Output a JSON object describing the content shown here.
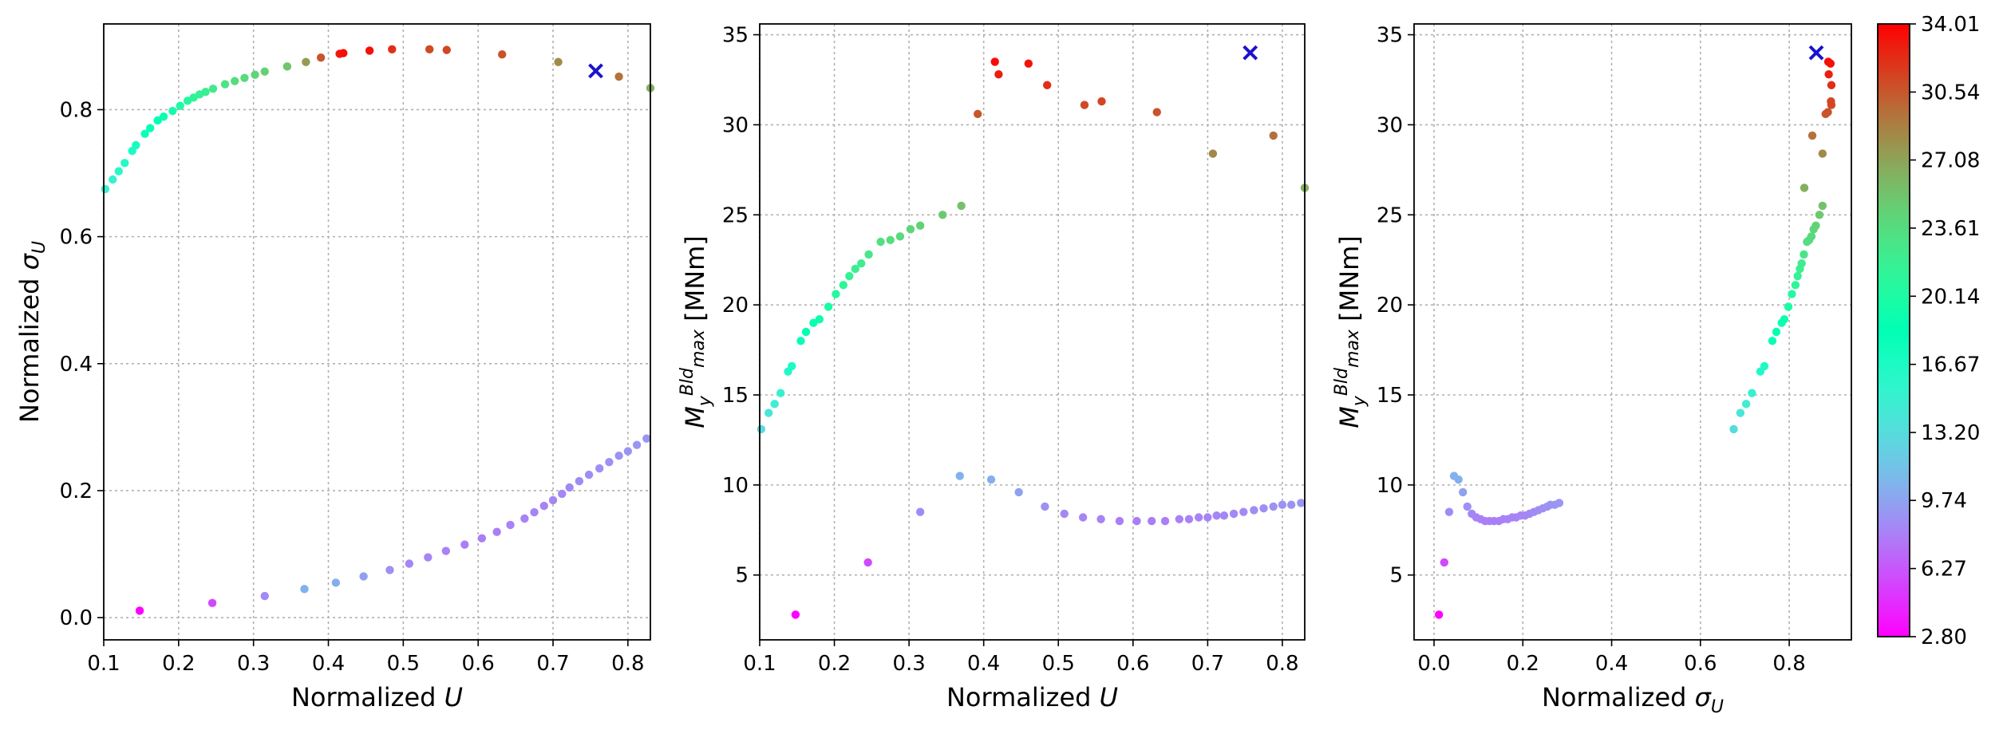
{
  "chart_data": [
    {
      "type": "scatter",
      "xlabel": {
        "main": "Normalized ",
        "sym": "U"
      },
      "ylabel": {
        "main": "Normalized ",
        "sym": "σ",
        "sub": "U"
      },
      "xlim": [
        0.1,
        0.83
      ],
      "ylim": [
        -0.035,
        0.935
      ],
      "xticks": [
        0.1,
        0.2,
        0.3,
        0.4,
        0.5,
        0.6,
        0.7,
        0.8
      ],
      "xtick_labels": [
        "0.1",
        "0.2",
        "0.3",
        "0.4",
        "0.5",
        "0.6",
        "0.7",
        "0.8"
      ],
      "yticks": [
        0.0,
        0.2,
        0.4,
        0.6,
        0.8
      ],
      "ytick_labels": [
        "0.0",
        "0.2",
        "0.4",
        "0.6",
        "0.8"
      ],
      "grid": true,
      "points": [
        {
          "x": 0.102,
          "y": 0.675,
          "c": 15.0
        },
        {
          "x": 0.112,
          "y": 0.69,
          "c": 15.3
        },
        {
          "x": 0.12,
          "y": 0.703,
          "c": 15.8
        },
        {
          "x": 0.128,
          "y": 0.716,
          "c": 16.2
        },
        {
          "x": 0.138,
          "y": 0.735,
          "c": 16.6
        },
        {
          "x": 0.143,
          "y": 0.744,
          "c": 17.0
        },
        {
          "x": 0.155,
          "y": 0.762,
          "c": 17.6
        },
        {
          "x": 0.162,
          "y": 0.771,
          "c": 18.0
        },
        {
          "x": 0.172,
          "y": 0.783,
          "c": 18.6
        },
        {
          "x": 0.18,
          "y": 0.789,
          "c": 18.9
        },
        {
          "x": 0.192,
          "y": 0.798,
          "c": 19.6
        },
        {
          "x": 0.202,
          "y": 0.806,
          "c": 20.0
        },
        {
          "x": 0.212,
          "y": 0.814,
          "c": 20.7
        },
        {
          "x": 0.22,
          "y": 0.819,
          "c": 21.2
        },
        {
          "x": 0.228,
          "y": 0.824,
          "c": 21.6
        },
        {
          "x": 0.236,
          "y": 0.828,
          "c": 22.0
        },
        {
          "x": 0.246,
          "y": 0.833,
          "c": 22.5
        },
        {
          "x": 0.262,
          "y": 0.84,
          "c": 23.0
        },
        {
          "x": 0.275,
          "y": 0.845,
          "c": 23.6
        },
        {
          "x": 0.288,
          "y": 0.85,
          "c": 23.8
        },
        {
          "x": 0.302,
          "y": 0.855,
          "c": 24.2
        },
        {
          "x": 0.315,
          "y": 0.86,
          "c": 24.5
        },
        {
          "x": 0.345,
          "y": 0.868,
          "c": 25.2
        },
        {
          "x": 0.37,
          "y": 0.875,
          "c": 27.5
        },
        {
          "x": 0.39,
          "y": 0.882,
          "c": 30.6
        },
        {
          "x": 0.415,
          "y": 0.888,
          "c": 33.0
        },
        {
          "x": 0.42,
          "y": 0.889,
          "c": 33.5
        },
        {
          "x": 0.455,
          "y": 0.893,
          "c": 33.4
        },
        {
          "x": 0.485,
          "y": 0.895,
          "c": 32.2
        },
        {
          "x": 0.535,
          "y": 0.895,
          "c": 31.1
        },
        {
          "x": 0.558,
          "y": 0.894,
          "c": 31.3
        },
        {
          "x": 0.632,
          "y": 0.887,
          "c": 30.7
        },
        {
          "x": 0.707,
          "y": 0.875,
          "c": 28.3
        },
        {
          "x": 0.788,
          "y": 0.852,
          "c": 29.4
        },
        {
          "x": 0.83,
          "y": 0.834,
          "c": 26.5
        },
        {
          "x": 0.148,
          "y": 0.011,
          "c": 2.8
        },
        {
          "x": 0.245,
          "y": 0.023,
          "c": 5.7
        },
        {
          "x": 0.315,
          "y": 0.034,
          "c": 8.5
        },
        {
          "x": 0.368,
          "y": 0.045,
          "c": 10.5
        },
        {
          "x": 0.41,
          "y": 0.055,
          "c": 10.3
        },
        {
          "x": 0.447,
          "y": 0.065,
          "c": 9.6
        },
        {
          "x": 0.482,
          "y": 0.075,
          "c": 8.8
        },
        {
          "x": 0.508,
          "y": 0.085,
          "c": 8.4
        },
        {
          "x": 0.533,
          "y": 0.095,
          "c": 8.2
        },
        {
          "x": 0.557,
          "y": 0.105,
          "c": 8.1
        },
        {
          "x": 0.582,
          "y": 0.115,
          "c": 8.0
        },
        {
          "x": 0.605,
          "y": 0.125,
          "c": 8.0
        },
        {
          "x": 0.625,
          "y": 0.135,
          "c": 8.0
        },
        {
          "x": 0.643,
          "y": 0.146,
          "c": 8.1
        },
        {
          "x": 0.662,
          "y": 0.156,
          "c": 8.1
        },
        {
          "x": 0.675,
          "y": 0.166,
          "c": 8.2
        },
        {
          "x": 0.688,
          "y": 0.176,
          "c": 8.2
        },
        {
          "x": 0.7,
          "y": 0.185,
          "c": 8.3
        },
        {
          "x": 0.712,
          "y": 0.195,
          "c": 8.3
        },
        {
          "x": 0.722,
          "y": 0.205,
          "c": 8.4
        },
        {
          "x": 0.735,
          "y": 0.215,
          "c": 8.5
        },
        {
          "x": 0.748,
          "y": 0.225,
          "c": 8.6
        },
        {
          "x": 0.762,
          "y": 0.235,
          "c": 8.7
        },
        {
          "x": 0.775,
          "y": 0.245,
          "c": 8.8
        },
        {
          "x": 0.788,
          "y": 0.255,
          "c": 8.9
        },
        {
          "x": 0.8,
          "y": 0.262,
          "c": 8.9
        },
        {
          "x": 0.812,
          "y": 0.272,
          "c": 9.0
        },
        {
          "x": 0.825,
          "y": 0.282,
          "c": 9.0
        }
      ],
      "marker": {
        "x": 0.757,
        "y": 0.861
      }
    },
    {
      "type": "scatter",
      "xlabel": {
        "main": "Normalized ",
        "sym": "U"
      },
      "ylabel": {
        "sym": "M",
        "sub": "y",
        "sup": "Bld",
        "sub2": "max",
        "unit": " [MNm]"
      },
      "xlim": [
        0.1,
        0.83
      ],
      "ylim": [
        1.4,
        35.6
      ],
      "xticks": [
        0.1,
        0.2,
        0.3,
        0.4,
        0.5,
        0.6,
        0.7,
        0.8
      ],
      "xtick_labels": [
        "0.1",
        "0.2",
        "0.3",
        "0.4",
        "0.5",
        "0.6",
        "0.7",
        "0.8"
      ],
      "yticks": [
        5,
        10,
        15,
        20,
        25,
        30,
        35
      ],
      "ytick_labels": [
        "5",
        "10",
        "15",
        "20",
        "25",
        "30",
        "35"
      ],
      "grid": true,
      "points": [
        {
          "x": 0.102,
          "y": 13.1,
          "c": 13.1
        },
        {
          "x": 0.112,
          "y": 14.0,
          "c": 14.0
        },
        {
          "x": 0.12,
          "y": 14.5,
          "c": 14.5
        },
        {
          "x": 0.128,
          "y": 15.1,
          "c": 15.1
        },
        {
          "x": 0.138,
          "y": 16.3,
          "c": 16.3
        },
        {
          "x": 0.143,
          "y": 16.6,
          "c": 16.6
        },
        {
          "x": 0.155,
          "y": 18.0,
          "c": 18.0
        },
        {
          "x": 0.162,
          "y": 18.5,
          "c": 18.5
        },
        {
          "x": 0.172,
          "y": 19.0,
          "c": 19.0
        },
        {
          "x": 0.18,
          "y": 19.2,
          "c": 19.2
        },
        {
          "x": 0.192,
          "y": 19.9,
          "c": 19.9
        },
        {
          "x": 0.202,
          "y": 20.6,
          "c": 20.6
        },
        {
          "x": 0.212,
          "y": 21.1,
          "c": 21.1
        },
        {
          "x": 0.22,
          "y": 21.6,
          "c": 21.6
        },
        {
          "x": 0.228,
          "y": 22.0,
          "c": 22.0
        },
        {
          "x": 0.236,
          "y": 22.3,
          "c": 22.3
        },
        {
          "x": 0.246,
          "y": 22.8,
          "c": 22.8
        },
        {
          "x": 0.262,
          "y": 23.5,
          "c": 23.5
        },
        {
          "x": 0.275,
          "y": 23.6,
          "c": 23.6
        },
        {
          "x": 0.288,
          "y": 23.8,
          "c": 23.8
        },
        {
          "x": 0.302,
          "y": 24.2,
          "c": 24.2
        },
        {
          "x": 0.315,
          "y": 24.4,
          "c": 24.4
        },
        {
          "x": 0.345,
          "y": 25.0,
          "c": 25.0
        },
        {
          "x": 0.37,
          "y": 25.5,
          "c": 25.5
        },
        {
          "x": 0.392,
          "y": 30.6,
          "c": 30.6
        },
        {
          "x": 0.415,
          "y": 33.5,
          "c": 33.5
        },
        {
          "x": 0.42,
          "y": 32.8,
          "c": 32.8
        },
        {
          "x": 0.46,
          "y": 33.4,
          "c": 33.4
        },
        {
          "x": 0.485,
          "y": 32.2,
          "c": 32.2
        },
        {
          "x": 0.535,
          "y": 31.1,
          "c": 31.1
        },
        {
          "x": 0.558,
          "y": 31.3,
          "c": 31.3
        },
        {
          "x": 0.632,
          "y": 30.7,
          "c": 30.7
        },
        {
          "x": 0.707,
          "y": 28.4,
          "c": 28.4
        },
        {
          "x": 0.788,
          "y": 29.4,
          "c": 29.4
        },
        {
          "x": 0.83,
          "y": 26.5,
          "c": 26.5
        },
        {
          "x": 0.148,
          "y": 2.8,
          "c": 2.8
        },
        {
          "x": 0.245,
          "y": 5.7,
          "c": 5.7
        },
        {
          "x": 0.315,
          "y": 8.5,
          "c": 8.5
        },
        {
          "x": 0.368,
          "y": 10.5,
          "c": 10.5
        },
        {
          "x": 0.41,
          "y": 10.3,
          "c": 10.3
        },
        {
          "x": 0.447,
          "y": 9.6,
          "c": 9.6
        },
        {
          "x": 0.482,
          "y": 8.8,
          "c": 8.8
        },
        {
          "x": 0.508,
          "y": 8.4,
          "c": 8.4
        },
        {
          "x": 0.533,
          "y": 8.2,
          "c": 8.2
        },
        {
          "x": 0.557,
          "y": 8.1,
          "c": 8.1
        },
        {
          "x": 0.582,
          "y": 8.0,
          "c": 8.0
        },
        {
          "x": 0.605,
          "y": 8.0,
          "c": 8.0
        },
        {
          "x": 0.625,
          "y": 8.0,
          "c": 8.0
        },
        {
          "x": 0.643,
          "y": 8.0,
          "c": 8.0
        },
        {
          "x": 0.662,
          "y": 8.1,
          "c": 8.1
        },
        {
          "x": 0.675,
          "y": 8.1,
          "c": 8.1
        },
        {
          "x": 0.688,
          "y": 8.2,
          "c": 8.2
        },
        {
          "x": 0.7,
          "y": 8.2,
          "c": 8.2
        },
        {
          "x": 0.712,
          "y": 8.3,
          "c": 8.3
        },
        {
          "x": 0.722,
          "y": 8.3,
          "c": 8.3
        },
        {
          "x": 0.735,
          "y": 8.4,
          "c": 8.4
        },
        {
          "x": 0.748,
          "y": 8.5,
          "c": 8.5
        },
        {
          "x": 0.762,
          "y": 8.6,
          "c": 8.6
        },
        {
          "x": 0.775,
          "y": 8.7,
          "c": 8.7
        },
        {
          "x": 0.788,
          "y": 8.8,
          "c": 8.8
        },
        {
          "x": 0.8,
          "y": 8.9,
          "c": 8.9
        },
        {
          "x": 0.812,
          "y": 8.9,
          "c": 8.9
        },
        {
          "x": 0.825,
          "y": 9.0,
          "c": 9.0
        }
      ],
      "marker": {
        "x": 0.757,
        "y": 34.0
      }
    },
    {
      "type": "scatter",
      "xlabel": {
        "main": "Normalized ",
        "sym": "σ",
        "sub": "U"
      },
      "ylabel": {
        "sym": "M",
        "sub": "y",
        "sup": "Bld",
        "sub2": "max",
        "unit": " [MNm]"
      },
      "xlim": [
        -0.045,
        0.94
      ],
      "ylim": [
        1.4,
        35.6
      ],
      "xticks": [
        0.0,
        0.2,
        0.4,
        0.6,
        0.8
      ],
      "xtick_labels": [
        "0.0",
        "0.2",
        "0.4",
        "0.6",
        "0.8"
      ],
      "yticks": [
        5,
        10,
        15,
        20,
        25,
        30,
        35
      ],
      "ytick_labels": [
        "5",
        "10",
        "15",
        "20",
        "25",
        "30",
        "35"
      ],
      "grid": true,
      "points": [
        {
          "x": 0.675,
          "y": 13.1,
          "c": 13.1
        },
        {
          "x": 0.69,
          "y": 14.0,
          "c": 14.0
        },
        {
          "x": 0.703,
          "y": 14.5,
          "c": 14.5
        },
        {
          "x": 0.716,
          "y": 15.1,
          "c": 15.1
        },
        {
          "x": 0.735,
          "y": 16.3,
          "c": 16.3
        },
        {
          "x": 0.744,
          "y": 16.6,
          "c": 16.6
        },
        {
          "x": 0.762,
          "y": 18.0,
          "c": 18.0
        },
        {
          "x": 0.771,
          "y": 18.5,
          "c": 18.5
        },
        {
          "x": 0.783,
          "y": 19.0,
          "c": 19.0
        },
        {
          "x": 0.789,
          "y": 19.2,
          "c": 19.2
        },
        {
          "x": 0.798,
          "y": 19.9,
          "c": 19.9
        },
        {
          "x": 0.806,
          "y": 20.6,
          "c": 20.6
        },
        {
          "x": 0.814,
          "y": 21.1,
          "c": 21.1
        },
        {
          "x": 0.819,
          "y": 21.6,
          "c": 21.6
        },
        {
          "x": 0.824,
          "y": 22.0,
          "c": 22.0
        },
        {
          "x": 0.828,
          "y": 22.3,
          "c": 22.3
        },
        {
          "x": 0.833,
          "y": 22.8,
          "c": 22.8
        },
        {
          "x": 0.84,
          "y": 23.5,
          "c": 23.5
        },
        {
          "x": 0.845,
          "y": 23.6,
          "c": 23.6
        },
        {
          "x": 0.85,
          "y": 23.8,
          "c": 23.8
        },
        {
          "x": 0.855,
          "y": 24.2,
          "c": 24.2
        },
        {
          "x": 0.86,
          "y": 24.4,
          "c": 24.4
        },
        {
          "x": 0.868,
          "y": 25.0,
          "c": 25.0
        },
        {
          "x": 0.875,
          "y": 25.5,
          "c": 25.5
        },
        {
          "x": 0.882,
          "y": 30.6,
          "c": 30.6
        },
        {
          "x": 0.888,
          "y": 33.5,
          "c": 33.5
        },
        {
          "x": 0.889,
          "y": 32.8,
          "c": 32.8
        },
        {
          "x": 0.893,
          "y": 33.4,
          "c": 33.4
        },
        {
          "x": 0.895,
          "y": 32.2,
          "c": 32.2
        },
        {
          "x": 0.895,
          "y": 31.1,
          "c": 31.1
        },
        {
          "x": 0.894,
          "y": 31.3,
          "c": 31.3
        },
        {
          "x": 0.887,
          "y": 30.7,
          "c": 30.7
        },
        {
          "x": 0.875,
          "y": 28.4,
          "c": 28.4
        },
        {
          "x": 0.852,
          "y": 29.4,
          "c": 29.4
        },
        {
          "x": 0.834,
          "y": 26.5,
          "c": 26.5
        },
        {
          "x": 0.011,
          "y": 2.8,
          "c": 2.8
        },
        {
          "x": 0.023,
          "y": 5.7,
          "c": 5.7
        },
        {
          "x": 0.034,
          "y": 8.5,
          "c": 8.5
        },
        {
          "x": 0.045,
          "y": 10.5,
          "c": 10.5
        },
        {
          "x": 0.055,
          "y": 10.3,
          "c": 10.3
        },
        {
          "x": 0.065,
          "y": 9.6,
          "c": 9.6
        },
        {
          "x": 0.075,
          "y": 8.8,
          "c": 8.8
        },
        {
          "x": 0.085,
          "y": 8.4,
          "c": 8.4
        },
        {
          "x": 0.095,
          "y": 8.2,
          "c": 8.2
        },
        {
          "x": 0.105,
          "y": 8.1,
          "c": 8.1
        },
        {
          "x": 0.115,
          "y": 8.0,
          "c": 8.0
        },
        {
          "x": 0.125,
          "y": 8.0,
          "c": 8.0
        },
        {
          "x": 0.135,
          "y": 8.0,
          "c": 8.0
        },
        {
          "x": 0.146,
          "y": 8.0,
          "c": 8.0
        },
        {
          "x": 0.156,
          "y": 8.1,
          "c": 8.1
        },
        {
          "x": 0.166,
          "y": 8.1,
          "c": 8.1
        },
        {
          "x": 0.176,
          "y": 8.2,
          "c": 8.2
        },
        {
          "x": 0.185,
          "y": 8.2,
          "c": 8.2
        },
        {
          "x": 0.195,
          "y": 8.3,
          "c": 8.3
        },
        {
          "x": 0.205,
          "y": 8.3,
          "c": 8.3
        },
        {
          "x": 0.215,
          "y": 8.4,
          "c": 8.4
        },
        {
          "x": 0.225,
          "y": 8.5,
          "c": 8.5
        },
        {
          "x": 0.235,
          "y": 8.6,
          "c": 8.6
        },
        {
          "x": 0.245,
          "y": 8.7,
          "c": 8.7
        },
        {
          "x": 0.255,
          "y": 8.8,
          "c": 8.8
        },
        {
          "x": 0.262,
          "y": 8.9,
          "c": 8.9
        },
        {
          "x": 0.272,
          "y": 8.9,
          "c": 8.9
        },
        {
          "x": 0.282,
          "y": 9.0,
          "c": 9.0
        }
      ],
      "marker": {
        "x": 0.861,
        "y": 34.0
      }
    }
  ],
  "colorbar": {
    "colormap": "rainbow",
    "range": [
      2.8,
      34.01
    ],
    "ticks": [
      2.8,
      6.27,
      9.74,
      13.2,
      16.67,
      20.14,
      23.61,
      27.08,
      30.54,
      34.01
    ],
    "tick_labels": [
      "2.80",
      "6.27",
      "9.74",
      "13.20",
      "16.67",
      "20.14",
      "23.61",
      "27.08",
      "30.54",
      "34.01"
    ]
  },
  "marker_style": {
    "symbol": "x",
    "color": "#1a12cc"
  }
}
